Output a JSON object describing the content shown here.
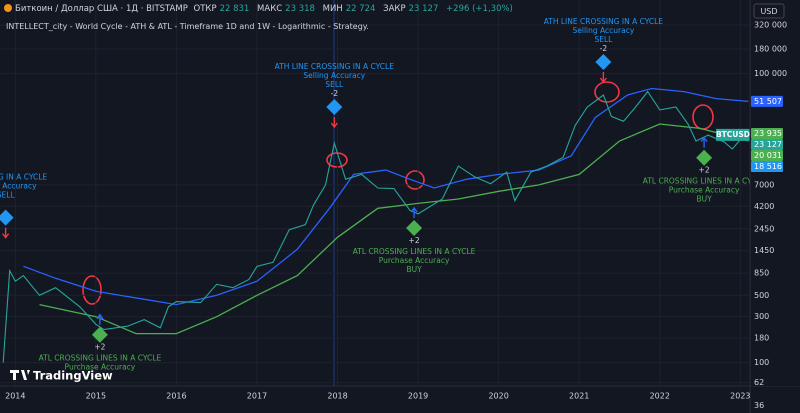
{
  "header": {
    "symbol": "Биткоин / Доллар США · 1Д · BITSTAMP",
    "fields": [
      {
        "label": "ОТКР",
        "value": "22 831"
      },
      {
        "label": "МАКС",
        "value": "23 318"
      },
      {
        "label": "МИН",
        "value": "22 724"
      },
      {
        "label": "ЗАКР",
        "value": "23 127"
      }
    ],
    "change": "+296 (+1,30%)",
    "currency": "USD",
    "logo": "TradingView"
  },
  "chart_data": {
    "type": "line",
    "title": "INTELLECT_city - World Cycle - ATH & ATL - Timeframe 1D and 1W - Logarithmic - Strategy.",
    "log_y": true,
    "grid": true,
    "xlim": [
      2013.81,
      2023.12
    ],
    "xticks": [
      2014,
      2015,
      2016,
      2017,
      2018,
      2019,
      2020,
      2021,
      2022,
      2023
    ],
    "ylim": [
      30,
      480000
    ],
    "yticks": [
      36,
      62,
      100,
      180,
      300,
      500,
      850,
      1450,
      2450,
      4200,
      7000,
      {
        "value": 100000,
        "label": "100 000"
      },
      {
        "value": 180000,
        "label": "180 000"
      },
      {
        "value": 320000,
        "label": "320 000"
      }
    ],
    "series": [
      {
        "name": "BTCUSD",
        "color": "#26a69a",
        "x": [
          2013.85,
          2013.93,
          2014.0,
          2014.1,
          2014.3,
          2014.5,
          2014.8,
          2015.0,
          2015.1,
          2015.4,
          2015.6,
          2015.8,
          2015.9,
          2016.0,
          2016.3,
          2016.5,
          2016.7,
          2016.9,
          2017.0,
          2017.2,
          2017.4,
          2017.6,
          2017.7,
          2017.85,
          2017.96,
          2018.1,
          2018.3,
          2018.5,
          2018.7,
          2018.9,
          2019.0,
          2019.3,
          2019.5,
          2019.7,
          2019.9,
          2020.1,
          2020.2,
          2020.4,
          2020.6,
          2020.8,
          2020.95,
          2021.1,
          2021.3,
          2021.4,
          2021.55,
          2021.7,
          2021.85,
          2022.0,
          2022.2,
          2022.35,
          2022.45,
          2022.6,
          2022.8,
          2022.9,
          2023.05
        ],
        "values": [
          100,
          900,
          700,
          800,
          500,
          600,
          380,
          250,
          220,
          240,
          280,
          230,
          380,
          430,
          420,
          650,
          600,
          730,
          1000,
          1100,
          2400,
          2700,
          4300,
          7000,
          19000,
          8000,
          9000,
          6500,
          6400,
          3800,
          3500,
          5000,
          11000,
          8500,
          7200,
          9500,
          4800,
          9500,
          11000,
          13500,
          29000,
          45000,
          60000,
          36000,
          32000,
          45000,
          65000,
          42000,
          45000,
          30000,
          20000,
          23000,
          19500,
          16500,
          23127
        ]
      },
      {
        "color": "#2962ff",
        "x": [
          2014.1,
          2014.5,
          2015.0,
          2016.0,
          2016.5,
          2017.0,
          2017.5,
          2017.9,
          2018.2,
          2018.6,
          2018.9,
          2019.2,
          2019.6,
          2020.0,
          2020.5,
          2020.9,
          2021.2,
          2021.6,
          2021.9,
          2022.3,
          2022.7,
          2023.1
        ],
        "values": [
          1000,
          750,
          550,
          400,
          500,
          700,
          1500,
          4000,
          9000,
          10000,
          8000,
          6500,
          8000,
          9000,
          10000,
          14000,
          35000,
          60000,
          70000,
          65000,
          55000,
          51507
        ]
      },
      {
        "color": "#4caf50",
        "x": [
          2014.3,
          2015.0,
          2015.5,
          2016.0,
          2016.5,
          2017.0,
          2017.5,
          2018.0,
          2018.5,
          2019.0,
          2019.5,
          2020.0,
          2020.5,
          2021.0,
          2021.5,
          2022.0,
          2022.5,
          2023.1
        ],
        "values": [
          400,
          300,
          200,
          200,
          300,
          500,
          800,
          2000,
          4000,
          4500,
          5000,
          6000,
          7000,
          9000,
          20000,
          30000,
          27000,
          20031
        ]
      }
    ],
    "price_labels": [
      {
        "value": 51507,
        "label": "51 507",
        "color": "#2962ff"
      },
      {
        "value": 23935,
        "label": "23 935",
        "color": "#4caf50"
      },
      {
        "value": 23127,
        "label": "23 127",
        "color": "#26a69a"
      },
      {
        "value": 20031,
        "label": "20 031",
        "color": "#4caf50"
      },
      {
        "value": 18516,
        "label": "18 516",
        "color": "#2196f3"
      }
    ],
    "annotations": [
      {
        "x": 2013.88,
        "y": 3200,
        "signal": "sell",
        "color": "#2196f3",
        "lines": [
          "CROSSING IN A CYCLE",
          "Selling Accuracy",
          "SELL"
        ]
      },
      {
        "x": 2017.96,
        "y": 45000,
        "signal": "sell",
        "color": "#2196f3",
        "marker_text": "-2",
        "lines": [
          "ATH LINE CROSSING IN A CYCLE",
          "Selling Accuracy",
          "SELL"
        ]
      },
      {
        "x": 2021.3,
        "y": 132000,
        "signal": "sell",
        "color": "#2196f3",
        "marker_text": "-2",
        "lines": [
          "ATH LINE CROSSING IN A CYCLE",
          "Selling Accuracy",
          "SELL"
        ]
      },
      {
        "x": 2015.05,
        "y": 195,
        "signal": "buy",
        "color": "#4caf50",
        "marker_text": "+2",
        "lines": [
          "ATL CROSSING LINES IN A CYCLE",
          "Purchase Accuracy"
        ]
      },
      {
        "x": 2018.95,
        "y": 2500,
        "signal": "buy",
        "color": "#4caf50",
        "marker_text": "+2",
        "lines": [
          "ATL CROSSING LINES IN A CYCLE",
          "Purchase Accuracy",
          "BUY"
        ]
      },
      {
        "x": 2022.55,
        "y": 13400,
        "signal": "buy",
        "color": "#4caf50",
        "marker_text": "+2",
        "lines": [
          "ATL CROSSING LINES IN A CYCLE",
          "Purchase Accuracy",
          "BUY"
        ]
      }
    ]
  }
}
